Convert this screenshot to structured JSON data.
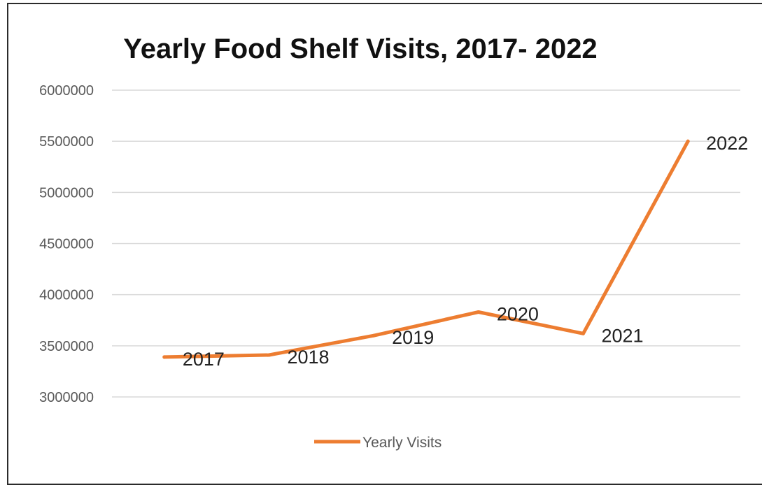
{
  "chart_data": {
    "type": "line",
    "title": "Yearly Food Shelf Visits, 2017- 2022",
    "xlabel": "",
    "ylabel": "",
    "ylim": [
      3000000,
      6000000
    ],
    "yticks": [
      "6000000",
      "5500000",
      "5000000",
      "4500000",
      "4000000",
      "3500000",
      "3000000"
    ],
    "grid": true,
    "legend_position": "bottom",
    "categories": [
      "2017",
      "2018",
      "2019",
      "2020",
      "2021",
      "2022"
    ],
    "series": [
      {
        "name": "Yearly Visits",
        "color": "#ED7D31",
        "values": [
          3390000,
          3410000,
          3600000,
          3830000,
          3620000,
          5500000
        ],
        "labels": [
          "2017",
          "2018",
          "2019",
          "2020",
          "2021",
          "2022"
        ]
      }
    ]
  }
}
